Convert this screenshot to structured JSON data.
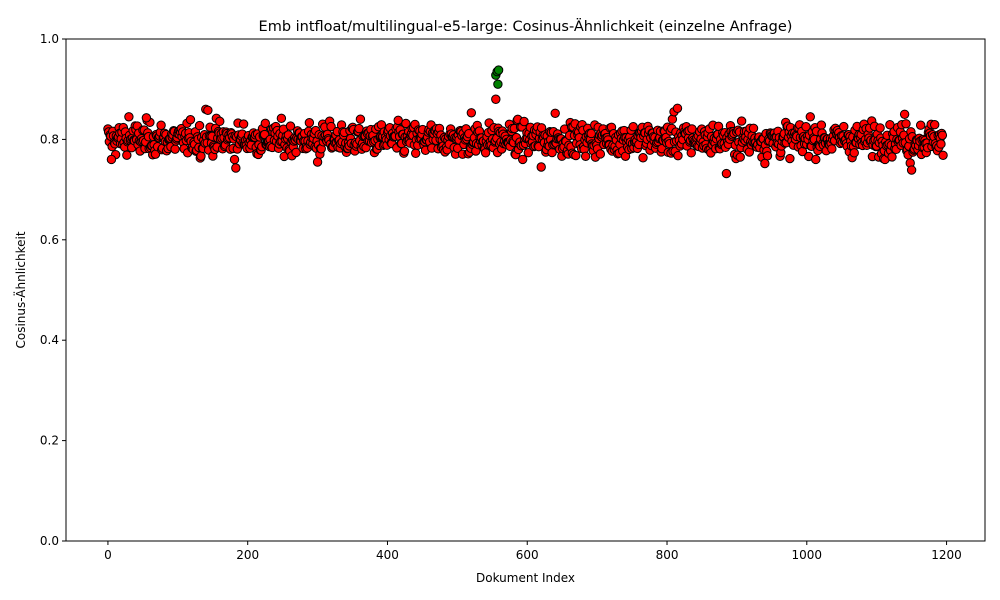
{
  "chart_data": {
    "type": "scatter",
    "title": "Emb intfloat/multilingual-e5-large: Cosinus-Ähnlichkeit (einzelne Anfrage)",
    "xlabel": "Dokument Index",
    "ylabel": "Cosinus-Ähnlichkeit",
    "xlim": [
      -60,
      1255
    ],
    "ylim": [
      0.0,
      1.0
    ],
    "xticks": [
      0,
      200,
      400,
      600,
      800,
      1000,
      1200
    ],
    "xtick_labels": [
      "0",
      "200",
      "400",
      "600",
      "800",
      "1000",
      "1200"
    ],
    "yticks": [
      0.0,
      0.2,
      0.4,
      0.6,
      0.8,
      1.0
    ],
    "ytick_labels": [
      "0.0",
      "0.2",
      "0.4",
      "0.6",
      "0.8",
      "1.0"
    ],
    "grid": false,
    "legend": "none",
    "colors": {
      "background": "#ffffff",
      "other": "#ff0000",
      "relevant": "#008000",
      "edge": "#000000"
    },
    "series": [
      {
        "color": "#ff0000",
        "count": 1195,
        "x_range": [
          0,
          1195
        ],
        "y_baseline": 0.8,
        "y_spread": 0.025,
        "points": [
          {
            "x": 5,
            "y": 0.76
          },
          {
            "x": 30,
            "y": 0.845
          },
          {
            "x": 55,
            "y": 0.843
          },
          {
            "x": 140,
            "y": 0.86
          },
          {
            "x": 143,
            "y": 0.858
          },
          {
            "x": 160,
            "y": 0.836
          },
          {
            "x": 183,
            "y": 0.743
          },
          {
            "x": 300,
            "y": 0.755
          },
          {
            "x": 520,
            "y": 0.853
          },
          {
            "x": 555,
            "y": 0.88
          },
          {
            "x": 620,
            "y": 0.745
          },
          {
            "x": 640,
            "y": 0.852
          },
          {
            "x": 810,
            "y": 0.855
          },
          {
            "x": 815,
            "y": 0.862
          },
          {
            "x": 885,
            "y": 0.732
          },
          {
            "x": 940,
            "y": 0.752
          },
          {
            "x": 1005,
            "y": 0.845
          },
          {
            "x": 1140,
            "y": 0.85
          },
          {
            "x": 1148,
            "y": 0.753
          },
          {
            "x": 1150,
            "y": 0.739
          }
        ]
      },
      {
        "color": "#008000",
        "points": [
          {
            "x": 555,
            "y": 0.928
          },
          {
            "x": 557,
            "y": 0.935
          },
          {
            "x": 559,
            "y": 0.938
          },
          {
            "x": 558,
            "y": 0.91
          }
        ]
      }
    ]
  }
}
